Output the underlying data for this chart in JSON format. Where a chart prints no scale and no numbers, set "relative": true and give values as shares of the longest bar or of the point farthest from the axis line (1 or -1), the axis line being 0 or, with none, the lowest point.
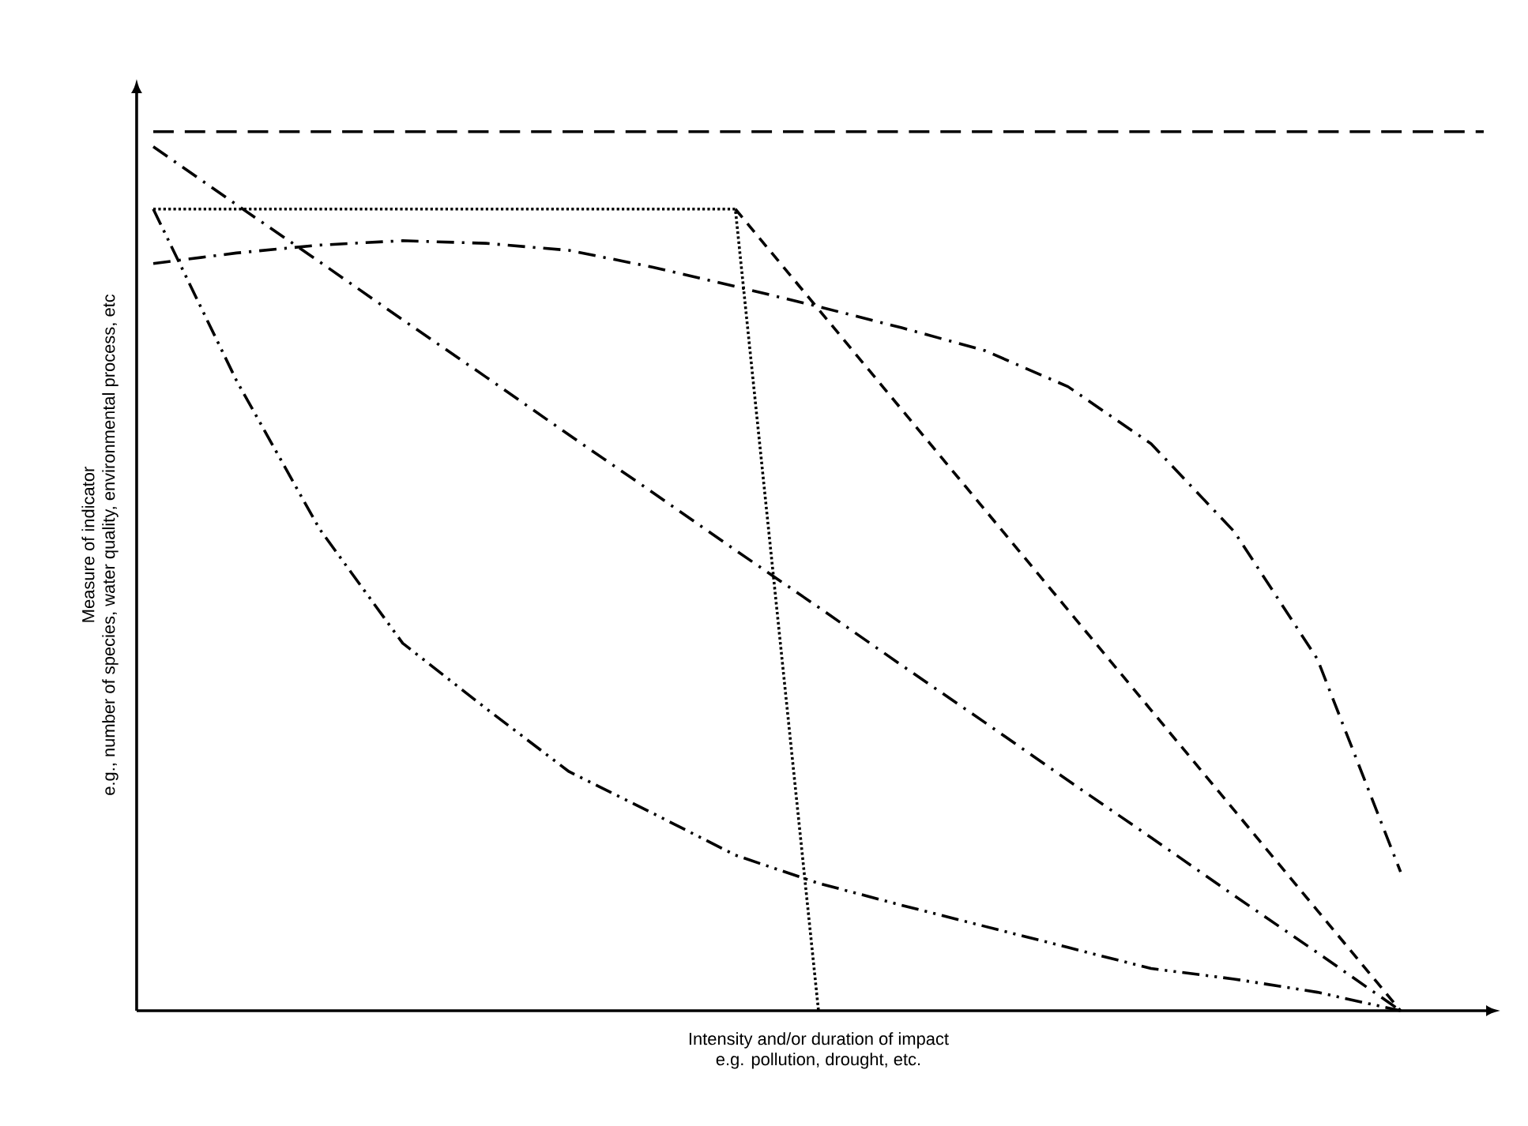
{
  "chart_data": {
    "type": "line",
    "relative": true,
    "xlabel": "Intensity and/or duration of impact",
    "ylabel": "Measure of indicator",
    "annotations": [
      "e.g. pollution, drought, etc.",
      "e.g., number of species, water quality, environmental process, etc"
    ],
    "marker": "none",
    "tick_labels": false,
    "categories": [
      null,
      null,
      null,
      null,
      null,
      null,
      null,
      null,
      null,
      null,
      null,
      null,
      null,
      null,
      null,
      null,
      null
    ],
    "series": [
      {
        "color": "#000000",
        "line_style": "longdash",
        "values": [
          1,
          1,
          1,
          1,
          1,
          1,
          1,
          1,
          1,
          1,
          1,
          1,
          1,
          1,
          1,
          1,
          1
        ]
      },
      {
        "color": "#000000",
        "line_style": "dotted",
        "values": [
          0.912,
          0.912,
          0.912,
          0.912,
          0.912,
          0.912,
          0.912,
          0.912,
          0,
          null,
          null,
          null,
          null,
          null,
          null,
          null,
          null
        ]
      },
      {
        "color": "#000000",
        "line_style": "dashed",
        "values": [
          null,
          null,
          null,
          null,
          null,
          null,
          null,
          0.912,
          0.798,
          0.684,
          0.57,
          0.456,
          0.342,
          0.228,
          0.114,
          0,
          null
        ]
      },
      {
        "color": "#000000",
        "line_style": "dashdot",
        "values": [
          0.983,
          0.917,
          0.852,
          0.786,
          0.721,
          0.655,
          0.59,
          0.524,
          0.459,
          0.393,
          0.328,
          0.262,
          0.197,
          0.131,
          0.066,
          0,
          null
        ]
      },
      {
        "color": "#000000",
        "line_style": "dashdot",
        "values": [
          0.85,
          0.862,
          0.871,
          0.876,
          0.873,
          0.865,
          0.846,
          0.824,
          0.801,
          0.777,
          0.751,
          0.71,
          0.645,
          0.545,
          0.4,
          0.158,
          null
        ]
      },
      {
        "color": "#000000",
        "line_style": "dashdotdot",
        "values": [
          0.912,
          0.717,
          0.548,
          0.418,
          0.344,
          0.272,
          0.225,
          0.177,
          0.145,
          0.12,
          0.096,
          0.072,
          0.048,
          0.036,
          0.021,
          0,
          null
        ]
      }
    ]
  }
}
